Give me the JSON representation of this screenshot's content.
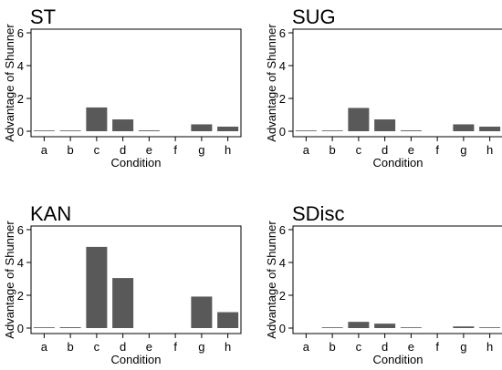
{
  "chart_data": [
    {
      "type": "bar",
      "title": "ST",
      "xlabel": "Condition",
      "ylabel": "Advantage of Shunner",
      "categories": [
        "a",
        "b",
        "c",
        "d",
        "e",
        "f",
        "g",
        "h"
      ],
      "values": [
        0.02,
        0.02,
        1.45,
        0.72,
        0.05,
        0,
        0.42,
        0.28
      ],
      "ylim": [
        0,
        6
      ],
      "yticks": [
        "0",
        "2",
        "4",
        "6"
      ],
      "bar_color": "#595959",
      "grid": false
    },
    {
      "type": "bar",
      "title": "SUG",
      "xlabel": "Condition",
      "ylabel": "Advantage of Shunner",
      "categories": [
        "a",
        "b",
        "c",
        "d",
        "e",
        "f",
        "g",
        "h"
      ],
      "values": [
        0.02,
        0.02,
        1.42,
        0.72,
        0.05,
        0,
        0.42,
        0.28
      ],
      "ylim": [
        0,
        6
      ],
      "yticks": [
        "0",
        "2",
        "4",
        "6"
      ],
      "bar_color": "#595959",
      "grid": false
    },
    {
      "type": "bar",
      "title": "KAN",
      "xlabel": "Condition",
      "ylabel": "Advantage of Shunner",
      "categories": [
        "a",
        "b",
        "c",
        "d",
        "e",
        "f",
        "g",
        "h"
      ],
      "values": [
        0.02,
        0.05,
        4.95,
        3.05,
        0,
        0,
        1.92,
        0.97
      ],
      "ylim": [
        0,
        6
      ],
      "yticks": [
        "0",
        "2",
        "4",
        "6"
      ],
      "bar_color": "#595959",
      "grid": false
    },
    {
      "type": "bar",
      "title": "SDisc",
      "xlabel": "Condition",
      "ylabel": "Advantage of Shunner",
      "categories": [
        "a",
        "b",
        "c",
        "d",
        "e",
        "f",
        "g",
        "h"
      ],
      "values": [
        0,
        0.02,
        0.38,
        0.27,
        0.02,
        0,
        0.1,
        0.03
      ],
      "ylim": [
        0,
        6
      ],
      "yticks": [
        "0",
        "2",
        "4",
        "6"
      ],
      "bar_color": "#595959",
      "grid": false
    }
  ]
}
